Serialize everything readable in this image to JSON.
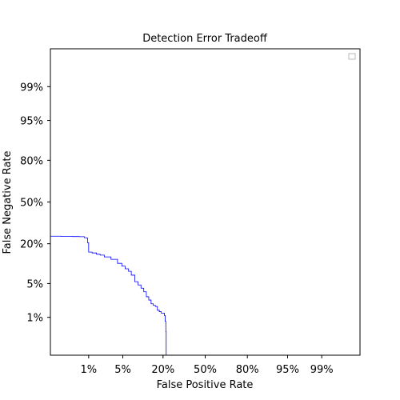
{
  "chart_data": {
    "type": "line",
    "title": "Detection Error Tradeoff",
    "xlabel": "False Positive Rate",
    "ylabel": "False Negative Rate",
    "scale": "probit",
    "xlim": [
      0.001,
      0.999
    ],
    "ylim": [
      0.001,
      0.999
    ],
    "x_ticks": [
      {
        "value": 0.01,
        "label": "1%"
      },
      {
        "value": 0.05,
        "label": "5%"
      },
      {
        "value": 0.2,
        "label": "20%"
      },
      {
        "value": 0.5,
        "label": "50%"
      },
      {
        "value": 0.8,
        "label": "80%"
      },
      {
        "value": 0.95,
        "label": "95%"
      },
      {
        "value": 0.99,
        "label": "99%"
      }
    ],
    "y_ticks": [
      {
        "value": 0.01,
        "label": "1%"
      },
      {
        "value": 0.05,
        "label": "5%"
      },
      {
        "value": 0.2,
        "label": "20%"
      },
      {
        "value": 0.5,
        "label": "50%"
      },
      {
        "value": 0.8,
        "label": "80%"
      },
      {
        "value": 0.95,
        "label": "95%"
      },
      {
        "value": 0.99,
        "label": "99%"
      }
    ],
    "grid": false,
    "legend": {
      "placement": "top-right",
      "entries": []
    },
    "series": [
      {
        "color": "#0000ff",
        "x": [
          0.001,
          0.002,
          0.004,
          0.006,
          0.008,
          0.009,
          0.0095,
          0.01,
          0.012,
          0.015,
          0.018,
          0.022,
          0.03,
          0.04,
          0.048,
          0.055,
          0.063,
          0.07,
          0.08,
          0.09,
          0.1,
          0.11,
          0.12,
          0.13,
          0.14,
          0.15,
          0.16,
          0.17,
          0.18,
          0.19,
          0.2,
          0.208,
          0.212,
          0.216,
          0.218
        ],
        "y": [
          0.245,
          0.244,
          0.243,
          0.242,
          0.235,
          0.234,
          0.205,
          0.156,
          0.152,
          0.146,
          0.142,
          0.134,
          0.124,
          0.108,
          0.098,
          0.089,
          0.081,
          0.07,
          0.054,
          0.047,
          0.041,
          0.035,
          0.028,
          0.024,
          0.02,
          0.0185,
          0.0175,
          0.0145,
          0.0135,
          0.0125,
          0.0125,
          0.011,
          0.008,
          0.0045,
          0.001
        ]
      }
    ]
  }
}
